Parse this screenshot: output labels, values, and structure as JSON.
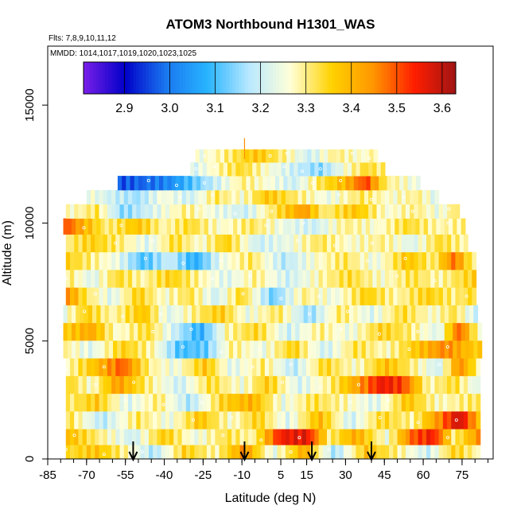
{
  "chart_data": {
    "type": "heatmap",
    "title": "ATOM3 Northbound H1301_WAS",
    "flights_note": "Flts: 7,8,9,10,11,12",
    "dates_note": "MMDD: 1014,1017,1019,1020,1023,1025",
    "xlabel": "Latitude (deg N)",
    "ylabel": "Altitude (m)",
    "xlim": [
      -85,
      87
    ],
    "ylim": [
      0,
      17500
    ],
    "x_ticks": [
      -85,
      -70,
      -55,
      -40,
      -25,
      -10,
      5,
      15,
      30,
      45,
      60,
      75
    ],
    "x_minor_step": 5,
    "y_ticks": [
      0,
      5000,
      10000,
      15000
    ],
    "colorbar": {
      "min": 2.81,
      "max": 3.63,
      "tick_values": [
        2.9,
        3.0,
        3.1,
        3.2,
        3.3,
        3.4,
        3.5,
        3.6
      ],
      "tick_labels": [
        "2.9",
        "3.0",
        "3.1",
        "3.2",
        "3.3",
        "3.4",
        "3.5",
        "3.6"
      ],
      "colors": [
        "#7a1fe8",
        "#0000c8",
        "#1a78f0",
        "#28b4ff",
        "#b8e8ff",
        "#ffffd8",
        "#ffd200",
        "#ff9600",
        "#ff1e00",
        "#a01414"
      ]
    },
    "arrows_latitude": [
      -52,
      -9,
      17,
      40
    ],
    "bands": [
      {
        "alt": 300,
        "lat_min": -78,
        "lat_max": 81,
        "knots": [
          [
            -78,
            3.33
          ],
          [
            -66,
            3.38
          ],
          [
            -56,
            3.3
          ],
          [
            -44,
            3.17
          ],
          [
            -32,
            3.36
          ],
          [
            -20,
            3.28
          ],
          [
            -9,
            3.45
          ],
          [
            2,
            3.23
          ],
          [
            14,
            3.42
          ],
          [
            26,
            3.16
          ],
          [
            38,
            3.38
          ],
          [
            50,
            3.3
          ],
          [
            62,
            3.2
          ],
          [
            72,
            3.36
          ],
          [
            81,
            3.28
          ]
        ]
      },
      {
        "alt": 900,
        "lat_min": -78,
        "lat_max": 81,
        "knots": [
          [
            -78,
            3.4
          ],
          [
            -65,
            3.3
          ],
          [
            -52,
            3.2
          ],
          [
            -40,
            3.37
          ],
          [
            -28,
            3.24
          ],
          [
            -16,
            3.33
          ],
          [
            -6,
            3.28
          ],
          [
            5,
            3.55
          ],
          [
            15,
            3.57
          ],
          [
            24,
            3.3
          ],
          [
            34,
            3.42
          ],
          [
            46,
            3.25
          ],
          [
            56,
            3.5
          ],
          [
            64,
            3.55
          ],
          [
            72,
            3.3
          ],
          [
            81,
            3.44
          ]
        ]
      },
      {
        "alt": 1650,
        "lat_min": -78,
        "lat_max": 81,
        "knots": [
          [
            -78,
            3.34
          ],
          [
            -64,
            3.18
          ],
          [
            -50,
            3.32
          ],
          [
            -38,
            3.24
          ],
          [
            -26,
            3.38
          ],
          [
            -14,
            3.26
          ],
          [
            -4,
            3.36
          ],
          [
            8,
            3.22
          ],
          [
            20,
            3.4
          ],
          [
            32,
            3.2
          ],
          [
            44,
            3.35
          ],
          [
            56,
            3.29
          ],
          [
            66,
            3.45
          ],
          [
            74,
            3.6
          ],
          [
            81,
            3.4
          ]
        ]
      },
      {
        "alt": 2400,
        "lat_min": -78,
        "lat_max": 81,
        "knots": [
          [
            -78,
            3.3
          ],
          [
            -66,
            3.37
          ],
          [
            -54,
            3.22
          ],
          [
            -42,
            3.31
          ],
          [
            -30,
            3.17
          ],
          [
            -18,
            3.35
          ],
          [
            -6,
            3.41
          ],
          [
            6,
            3.24
          ],
          [
            18,
            3.33
          ],
          [
            30,
            3.28
          ],
          [
            42,
            3.22
          ],
          [
            54,
            3.38
          ],
          [
            66,
            3.27
          ],
          [
            81,
            3.32
          ]
        ]
      },
      {
        "alt": 3150,
        "lat_min": -78,
        "lat_max": 81,
        "knots": [
          [
            -78,
            3.36
          ],
          [
            -68,
            3.26
          ],
          [
            -58,
            3.44
          ],
          [
            -46,
            3.3
          ],
          [
            -34,
            3.2
          ],
          [
            -22,
            3.34
          ],
          [
            -10,
            3.25
          ],
          [
            0,
            3.37
          ],
          [
            12,
            3.21
          ],
          [
            24,
            3.3
          ],
          [
            34,
            3.42
          ],
          [
            44,
            3.56
          ],
          [
            52,
            3.52
          ],
          [
            62,
            3.28
          ],
          [
            72,
            3.34
          ],
          [
            81,
            3.22
          ]
        ]
      },
      {
        "alt": 3900,
        "lat_min": -78,
        "lat_max": 81,
        "knots": [
          [
            -78,
            3.27
          ],
          [
            -66,
            3.39
          ],
          [
            -56,
            3.5
          ],
          [
            -46,
            3.3
          ],
          [
            -36,
            3.24
          ],
          [
            -24,
            3.38
          ],
          [
            -14,
            3.22
          ],
          [
            -2,
            3.31
          ],
          [
            10,
            3.18
          ],
          [
            22,
            3.35
          ],
          [
            34,
            3.26
          ],
          [
            46,
            3.39
          ],
          [
            56,
            3.3
          ],
          [
            66,
            3.2
          ],
          [
            74,
            3.46
          ],
          [
            81,
            3.3
          ]
        ]
      },
      {
        "alt": 4650,
        "lat_min": -79,
        "lat_max": 81,
        "knots": [
          [
            -79,
            3.3
          ],
          [
            -68,
            3.22
          ],
          [
            -56,
            3.36
          ],
          [
            -44,
            3.28
          ],
          [
            -34,
            3.1
          ],
          [
            -24,
            3.12
          ],
          [
            -14,
            3.3
          ],
          [
            -2,
            3.24
          ],
          [
            10,
            3.36
          ],
          [
            22,
            3.2
          ],
          [
            34,
            3.33
          ],
          [
            46,
            3.27
          ],
          [
            58,
            3.38
          ],
          [
            68,
            3.46
          ],
          [
            81,
            3.36
          ]
        ]
      },
      {
        "alt": 5400,
        "lat_min": -79,
        "lat_max": 81,
        "knots": [
          [
            -79,
            3.36
          ],
          [
            -68,
            3.42
          ],
          [
            -58,
            3.26
          ],
          [
            -46,
            3.34
          ],
          [
            -36,
            3.2
          ],
          [
            -26,
            3.07
          ],
          [
            -16,
            3.28
          ],
          [
            -4,
            3.35
          ],
          [
            8,
            3.2
          ],
          [
            20,
            3.3
          ],
          [
            32,
            3.24
          ],
          [
            44,
            3.36
          ],
          [
            56,
            3.3
          ],
          [
            66,
            3.22
          ],
          [
            74,
            3.5
          ],
          [
            81,
            3.28
          ]
        ]
      },
      {
        "alt": 6150,
        "lat_min": -79,
        "lat_max": 80,
        "knots": [
          [
            -79,
            3.24
          ],
          [
            -70,
            3.36
          ],
          [
            -60,
            3.28
          ],
          [
            -48,
            3.38
          ],
          [
            -38,
            3.22
          ],
          [
            -28,
            3.3
          ],
          [
            -18,
            3.37
          ],
          [
            -8,
            3.24
          ],
          [
            4,
            3.32
          ],
          [
            16,
            3.15
          ],
          [
            28,
            3.32
          ],
          [
            40,
            3.22
          ],
          [
            52,
            3.34
          ],
          [
            64,
            3.26
          ],
          [
            72,
            3.33
          ],
          [
            80,
            3.2
          ]
        ]
      },
      {
        "alt": 6900,
        "lat_min": -78,
        "lat_max": 80,
        "knots": [
          [
            -78,
            3.46
          ],
          [
            -70,
            3.32
          ],
          [
            -60,
            3.22
          ],
          [
            -50,
            3.36
          ],
          [
            -40,
            3.26
          ],
          [
            -30,
            3.33
          ],
          [
            -20,
            3.2
          ],
          [
            -10,
            3.35
          ],
          [
            2,
            3.12
          ],
          [
            14,
            3.3
          ],
          [
            26,
            3.24
          ],
          [
            38,
            3.36
          ],
          [
            50,
            3.28
          ],
          [
            62,
            3.36
          ],
          [
            72,
            3.3
          ],
          [
            80,
            3.35
          ]
        ]
      },
      {
        "alt": 7650,
        "lat_min": -78,
        "lat_max": 79,
        "knots": [
          [
            -78,
            3.32
          ],
          [
            -68,
            3.22
          ],
          [
            -58,
            3.34
          ],
          [
            -48,
            3.28
          ],
          [
            -38,
            3.36
          ],
          [
            -28,
            3.3
          ],
          [
            -16,
            3.22
          ],
          [
            -4,
            3.3
          ],
          [
            8,
            3.2
          ],
          [
            20,
            3.28
          ],
          [
            32,
            3.34
          ],
          [
            44,
            3.26
          ],
          [
            56,
            3.33
          ],
          [
            66,
            3.28
          ],
          [
            79,
            3.36
          ]
        ]
      },
      {
        "alt": 8400,
        "lat_min": -78,
        "lat_max": 79,
        "knots": [
          [
            -78,
            3.36
          ],
          [
            -68,
            3.3
          ],
          [
            -58,
            3.24
          ],
          [
            -48,
            3.1
          ],
          [
            -38,
            3.2
          ],
          [
            -28,
            3.07
          ],
          [
            -18,
            3.24
          ],
          [
            -6,
            3.32
          ],
          [
            6,
            3.18
          ],
          [
            18,
            3.26
          ],
          [
            30,
            3.32
          ],
          [
            42,
            3.24
          ],
          [
            54,
            3.38
          ],
          [
            64,
            3.3
          ],
          [
            72,
            3.48
          ],
          [
            79,
            3.3
          ]
        ]
      },
      {
        "alt": 9150,
        "lat_min": -78,
        "lat_max": 77,
        "knots": [
          [
            -78,
            3.3
          ],
          [
            -68,
            3.36
          ],
          [
            -56,
            3.3
          ],
          [
            -46,
            3.22
          ],
          [
            -36,
            3.34
          ],
          [
            -26,
            3.26
          ],
          [
            -16,
            3.36
          ],
          [
            -4,
            3.2
          ],
          [
            8,
            3.24
          ],
          [
            20,
            3.32
          ],
          [
            32,
            3.26
          ],
          [
            44,
            3.3
          ],
          [
            56,
            3.22
          ],
          [
            66,
            3.34
          ],
          [
            77,
            3.28
          ]
        ]
      },
      {
        "alt": 9900,
        "lat_min": -79,
        "lat_max": 76,
        "knots": [
          [
            -79,
            3.52
          ],
          [
            -72,
            3.42
          ],
          [
            -62,
            3.3
          ],
          [
            -50,
            3.38
          ],
          [
            -40,
            3.28
          ],
          [
            -30,
            3.34
          ],
          [
            -18,
            3.26
          ],
          [
            -6,
            3.32
          ],
          [
            6,
            3.24
          ],
          [
            18,
            3.2
          ],
          [
            30,
            3.3
          ],
          [
            42,
            3.26
          ],
          [
            54,
            3.34
          ],
          [
            66,
            3.28
          ],
          [
            76,
            3.3
          ]
        ]
      },
      {
        "alt": 10500,
        "lat_min": -78,
        "lat_max": 73,
        "knots": [
          [
            -78,
            3.26
          ],
          [
            -66,
            3.32
          ],
          [
            -56,
            3.14
          ],
          [
            -44,
            3.22
          ],
          [
            -32,
            3.3
          ],
          [
            -20,
            3.24
          ],
          [
            -8,
            3.2
          ],
          [
            4,
            3.34
          ],
          [
            14,
            3.44
          ],
          [
            22,
            3.3
          ],
          [
            34,
            3.38
          ],
          [
            46,
            3.26
          ],
          [
            58,
            3.3
          ],
          [
            66,
            3.24
          ],
          [
            73,
            3.32
          ]
        ]
      },
      {
        "alt": 11100,
        "lat_min": -70,
        "lat_max": 65,
        "knots": [
          [
            -70,
            3.26
          ],
          [
            -60,
            3.2
          ],
          [
            -50,
            3.16
          ],
          [
            -40,
            3.26
          ],
          [
            -30,
            3.2
          ],
          [
            -20,
            3.32
          ],
          [
            -10,
            3.26
          ],
          [
            0,
            3.38
          ],
          [
            12,
            3.3
          ],
          [
            24,
            3.24
          ],
          [
            36,
            3.32
          ],
          [
            48,
            3.26
          ],
          [
            58,
            3.3
          ],
          [
            65,
            3.22
          ]
        ]
      },
      {
        "alt": 11700,
        "lat_min": -58,
        "lat_max": 58,
        "knots": [
          [
            -58,
            2.96
          ],
          [
            -48,
            2.98
          ],
          [
            -38,
            3.02
          ],
          [
            -30,
            3.1
          ],
          [
            -20,
            3.2
          ],
          [
            -10,
            3.3
          ],
          [
            0,
            3.26
          ],
          [
            10,
            3.2
          ],
          [
            20,
            3.32
          ],
          [
            30,
            3.4
          ],
          [
            38,
            3.52
          ],
          [
            46,
            3.3
          ],
          [
            58,
            3.24
          ]
        ]
      },
      {
        "alt": 12300,
        "lat_min": -30,
        "lat_max": 45,
        "knots": [
          [
            -30,
            3.2
          ],
          [
            -20,
            3.28
          ],
          [
            -10,
            3.34
          ],
          [
            0,
            3.26
          ],
          [
            10,
            3.2
          ],
          [
            20,
            3.14
          ],
          [
            30,
            3.26
          ],
          [
            38,
            3.34
          ],
          [
            45,
            3.3
          ]
        ]
      },
      {
        "alt": 12850,
        "lat_min": -28,
        "lat_max": 42,
        "knots": [
          [
            -28,
            3.24
          ],
          [
            -16,
            3.3
          ],
          [
            -4,
            3.38
          ],
          [
            6,
            3.3
          ],
          [
            16,
            3.2
          ],
          [
            26,
            3.3
          ],
          [
            36,
            3.26
          ],
          [
            42,
            3.3
          ]
        ]
      }
    ]
  }
}
